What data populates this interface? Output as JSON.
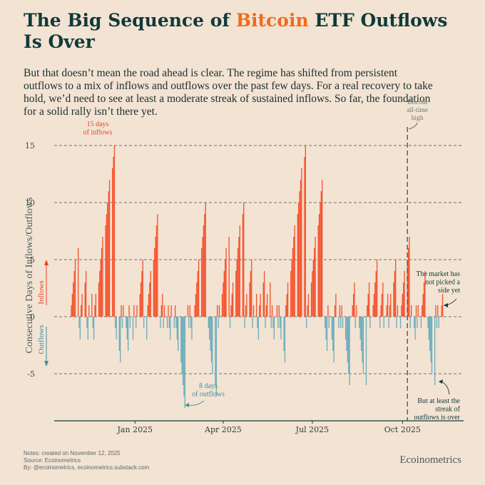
{
  "header": {
    "title_part1": "The Big Sequence of ",
    "title_highlight": "Bitcoin",
    "title_part2": " ETF Outflows",
    "title_line2": "Is Over",
    "subtitle": "But that doesn’t mean the road ahead is clear. The regime has shifted from persistent outflows to a mix of inflows and outflows over the past few days. For a real recovery to take hold, we’d need to see at least a moderate streak of sustained inflows. So far, the foundation for a solid rally isn’t there yet."
  },
  "footer": {
    "note1": "Notes: created on November 12, 2025",
    "note2": "Source: Ecoinometrics",
    "note3": "By: @ecoinometrics, ecoinometrics.substack.com",
    "brand": "Ecoinometrics"
  },
  "chart_data": {
    "type": "bar",
    "ylabel": "Consecutive Days of Inflows/Outflows",
    "ylabel_inflows": "Inflows",
    "ylabel_outflows": "Outflows",
    "ylim": [
      -9,
      16
    ],
    "yticks": [
      -5,
      0,
      5,
      10,
      15
    ],
    "xticks": [
      {
        "label": "Jan 2025",
        "date": "2025-01-01"
      },
      {
        "label": "Apr 2025",
        "date": "2025-04-01"
      },
      {
        "label": "Jul 2025",
        "date": "2025-07-01"
      },
      {
        "label": "Oct 2025",
        "date": "2025-10-01"
      }
    ],
    "xrange": [
      "2024-10-28",
      "2025-11-12"
    ],
    "grid": "horizontal dashed",
    "colors": {
      "inflows": "#f4512c",
      "outflows": "#6aacbc",
      "axis": "#0f3a3a"
    },
    "ath": {
      "date": "2025-10-06",
      "label_lines": [
        "Bitcoin",
        "all-time",
        "high"
      ]
    },
    "annotations": [
      {
        "id": "max-inflows",
        "lines": [
          "15 days",
          "of inflows"
        ],
        "color": "#e8412a"
      },
      {
        "id": "max-outflows",
        "lines": [
          "8 days",
          "of outflows"
        ],
        "color": "#3f8ea0"
      },
      {
        "id": "no-side",
        "lines": [
          "The market has",
          "not picked a",
          "side yet"
        ],
        "color": "#0f3a3a"
      },
      {
        "id": "streak-over",
        "lines": [
          "But at least the",
          "streak of",
          "outflows is over"
        ],
        "color": "#0f3a3a"
      }
    ],
    "streaks": [
      {
        "start": "2024-10-28",
        "sign": 1,
        "len": 6
      },
      {
        "start": "2024-11-05",
        "sign": -1,
        "len": 2
      },
      {
        "start": "2024-11-07",
        "sign": 1,
        "len": 4
      },
      {
        "start": "2024-11-13",
        "sign": -1,
        "len": 2
      },
      {
        "start": "2024-11-15",
        "sign": 1,
        "len": 2
      },
      {
        "start": "2024-11-19",
        "sign": -1,
        "len": 2
      },
      {
        "start": "2024-11-21",
        "sign": 1,
        "len": 15
      },
      {
        "start": "2024-12-12",
        "sign": -1,
        "len": 4
      },
      {
        "start": "2024-12-18",
        "sign": 1,
        "len": 1
      },
      {
        "start": "2024-12-19",
        "sign": -1,
        "len": 1
      },
      {
        "start": "2024-12-20",
        "sign": 1,
        "len": 1
      },
      {
        "start": "2024-12-23",
        "sign": -1,
        "len": 3
      },
      {
        "start": "2024-12-26",
        "sign": 1,
        "len": 1
      },
      {
        "start": "2024-12-27",
        "sign": -1,
        "len": 2
      },
      {
        "start": "2024-12-31",
        "sign": 1,
        "len": 1
      },
      {
        "start": "2025-01-02",
        "sign": -1,
        "len": 1
      },
      {
        "start": "2025-01-03",
        "sign": 1,
        "len": 5
      },
      {
        "start": "2025-01-10",
        "sign": -1,
        "len": 2
      },
      {
        "start": "2025-01-14",
        "sign": 1,
        "len": 9
      },
      {
        "start": "2025-01-27",
        "sign": -1,
        "len": 1
      },
      {
        "start": "2025-01-28",
        "sign": 1,
        "len": 2
      },
      {
        "start": "2025-01-30",
        "sign": -1,
        "len": 1
      },
      {
        "start": "2025-01-31",
        "sign": 1,
        "len": 1
      },
      {
        "start": "2025-02-03",
        "sign": -1,
        "len": 1
      },
      {
        "start": "2025-02-04",
        "sign": 1,
        "len": 1
      },
      {
        "start": "2025-02-05",
        "sign": -1,
        "len": 2
      },
      {
        "start": "2025-02-07",
        "sign": 1,
        "len": 1
      },
      {
        "start": "2025-02-10",
        "sign": -1,
        "len": 1
      },
      {
        "start": "2025-02-11",
        "sign": 1,
        "len": 1
      },
      {
        "start": "2025-02-12",
        "sign": -1,
        "len": 8
      },
      {
        "start": "2025-02-24",
        "sign": 1,
        "len": 1
      },
      {
        "start": "2025-02-25",
        "sign": -1,
        "len": 1
      },
      {
        "start": "2025-02-26",
        "sign": 1,
        "len": 1
      },
      {
        "start": "2025-02-27",
        "sign": -1,
        "len": 2
      },
      {
        "start": "2025-03-03",
        "sign": 1,
        "len": 10
      },
      {
        "start": "2025-03-17",
        "sign": -1,
        "len": 7
      },
      {
        "start": "2025-03-26",
        "sign": 1,
        "len": 1
      },
      {
        "start": "2025-03-27",
        "sign": -1,
        "len": 1
      },
      {
        "start": "2025-03-28",
        "sign": 1,
        "len": 7
      },
      {
        "start": "2025-04-08",
        "sign": -1,
        "len": 1
      },
      {
        "start": "2025-04-09",
        "sign": 1,
        "len": 10
      },
      {
        "start": "2025-04-23",
        "sign": -1,
        "len": 1
      },
      {
        "start": "2025-04-24",
        "sign": 1,
        "len": 5
      },
      {
        "start": "2025-05-01",
        "sign": -1,
        "len": 1
      },
      {
        "start": "2025-05-02",
        "sign": 1,
        "len": 2
      },
      {
        "start": "2025-05-06",
        "sign": -1,
        "len": 2
      },
      {
        "start": "2025-05-08",
        "sign": 1,
        "len": 4
      },
      {
        "start": "2025-05-14",
        "sign": -1,
        "len": 1
      },
      {
        "start": "2025-05-15",
        "sign": 1,
        "len": 3
      },
      {
        "start": "2025-05-20",
        "sign": -1,
        "len": 1
      },
      {
        "start": "2025-05-21",
        "sign": 1,
        "len": 1
      },
      {
        "start": "2025-05-22",
        "sign": -1,
        "len": 2
      },
      {
        "start": "2025-05-26",
        "sign": 1,
        "len": 1
      },
      {
        "start": "2025-05-27",
        "sign": -1,
        "len": 1
      },
      {
        "start": "2025-05-28",
        "sign": 1,
        "len": 1
      },
      {
        "start": "2025-05-29",
        "sign": -1,
        "len": 4
      },
      {
        "start": "2025-06-04",
        "sign": 1,
        "len": 15
      },
      {
        "start": "2025-06-25",
        "sign": -1,
        "len": 1
      },
      {
        "start": "2025-06-26",
        "sign": 1,
        "len": 12
      },
      {
        "start": "2025-07-14",
        "sign": -1,
        "len": 3
      },
      {
        "start": "2025-07-17",
        "sign": 1,
        "len": 1
      },
      {
        "start": "2025-07-18",
        "sign": -1,
        "len": 4
      },
      {
        "start": "2025-07-24",
        "sign": 1,
        "len": 2
      },
      {
        "start": "2025-07-28",
        "sign": -1,
        "len": 1
      },
      {
        "start": "2025-07-29",
        "sign": 1,
        "len": 1
      },
      {
        "start": "2025-07-30",
        "sign": -1,
        "len": 1
      },
      {
        "start": "2025-07-31",
        "sign": 1,
        "len": 1
      },
      {
        "start": "2025-08-01",
        "sign": -1,
        "len": 6
      },
      {
        "start": "2025-08-11",
        "sign": 1,
        "len": 3
      },
      {
        "start": "2025-08-14",
        "sign": -1,
        "len": 1
      },
      {
        "start": "2025-08-15",
        "sign": 1,
        "len": 1
      },
      {
        "start": "2025-08-18",
        "sign": -1,
        "len": 6
      },
      {
        "start": "2025-08-26",
        "sign": 1,
        "len": 3
      },
      {
        "start": "2025-08-29",
        "sign": -1,
        "len": 1
      },
      {
        "start": "2025-09-01",
        "sign": 1,
        "len": 5
      },
      {
        "start": "2025-09-08",
        "sign": -1,
        "len": 1
      },
      {
        "start": "2025-09-09",
        "sign": 1,
        "len": 3
      },
      {
        "start": "2025-09-12",
        "sign": -1,
        "len": 1
      },
      {
        "start": "2025-09-15",
        "sign": 1,
        "len": 2
      },
      {
        "start": "2025-09-17",
        "sign": -1,
        "len": 1
      },
      {
        "start": "2025-09-18",
        "sign": 1,
        "len": 5
      },
      {
        "start": "2025-09-25",
        "sign": -1,
        "len": 1
      },
      {
        "start": "2025-09-26",
        "sign": 1,
        "len": 1
      },
      {
        "start": "2025-09-29",
        "sign": -1,
        "len": 1
      },
      {
        "start": "2025-09-30",
        "sign": 1,
        "len": 7
      },
      {
        "start": "2025-10-09",
        "sign": -1,
        "len": 1
      },
      {
        "start": "2025-10-10",
        "sign": 1,
        "len": 1
      },
      {
        "start": "2025-10-13",
        "sign": -1,
        "len": 2
      },
      {
        "start": "2025-10-15",
        "sign": 1,
        "len": 1
      },
      {
        "start": "2025-10-16",
        "sign": -1,
        "len": 1
      },
      {
        "start": "2025-10-17",
        "sign": 1,
        "len": 1
      },
      {
        "start": "2025-10-20",
        "sign": -1,
        "len": 1
      },
      {
        "start": "2025-10-21",
        "sign": 1,
        "len": 4
      },
      {
        "start": "2025-10-27",
        "sign": -1,
        "len": 6
      },
      {
        "start": "2025-11-04",
        "sign": 1,
        "len": 1
      },
      {
        "start": "2025-11-05",
        "sign": -1,
        "len": 1
      },
      {
        "start": "2025-11-06",
        "sign": 1,
        "len": 1
      },
      {
        "start": "2025-11-07",
        "sign": -1,
        "len": 1
      },
      {
        "start": "2025-11-10",
        "sign": 1,
        "len": 2
      }
    ]
  }
}
